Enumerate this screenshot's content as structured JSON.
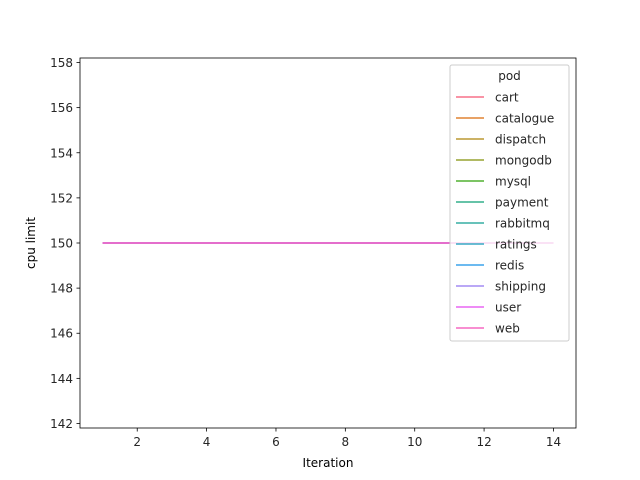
{
  "chart_data": {
    "type": "line",
    "xlabel": "Iteration",
    "ylabel": "cpu limit",
    "xlim": [
      0.35,
      14.65
    ],
    "ylim": [
      141.8,
      158.2
    ],
    "xticks": [
      2,
      4,
      6,
      8,
      10,
      12,
      14
    ],
    "yticks": [
      142,
      144,
      146,
      148,
      150,
      152,
      154,
      156,
      158
    ],
    "x": [
      1,
      2,
      3,
      4,
      5,
      6,
      7,
      8,
      9,
      10,
      11,
      12,
      13,
      14
    ],
    "legend": {
      "title": "pod",
      "placement": "upper right"
    },
    "series": [
      {
        "name": "cart",
        "color": "#f77189",
        "values": [
          150,
          150,
          150,
          150,
          150,
          150,
          150,
          150,
          150,
          150,
          150,
          150,
          150,
          150
        ]
      },
      {
        "name": "catalogue",
        "color": "#e18432",
        "values": [
          150,
          150,
          150,
          150,
          150,
          150,
          150,
          150,
          150,
          150,
          150,
          150,
          150,
          150
        ]
      },
      {
        "name": "dispatch",
        "color": "#bb9832",
        "values": [
          150,
          150,
          150,
          150,
          150,
          150,
          150,
          150,
          150,
          150,
          150,
          150,
          150,
          150
        ]
      },
      {
        "name": "mongodb",
        "color": "#97a431",
        "values": [
          150,
          150,
          150,
          150,
          150,
          150,
          150,
          150,
          150,
          150,
          150,
          150,
          150,
          150
        ]
      },
      {
        "name": "mysql",
        "color": "#50b131",
        "values": [
          150,
          150,
          150,
          150,
          150,
          150,
          150,
          150,
          150,
          150,
          150,
          150,
          150,
          150
        ]
      },
      {
        "name": "payment",
        "color": "#34af8b",
        "values": [
          150,
          150,
          150,
          150,
          150,
          150,
          150,
          150,
          150,
          150,
          150,
          150,
          150,
          150
        ]
      },
      {
        "name": "rabbitmq",
        "color": "#36ada4",
        "values": [
          150,
          150,
          150,
          150,
          150,
          150,
          150,
          150,
          150,
          150,
          150,
          150,
          150,
          150
        ]
      },
      {
        "name": "ratings",
        "color": "#38a9c5",
        "values": [
          150,
          150,
          150,
          150,
          150,
          150,
          150,
          150,
          150,
          150,
          150,
          150,
          150,
          150
        ]
      },
      {
        "name": "redis",
        "color": "#3ba3ec",
        "values": [
          150,
          150,
          150,
          150,
          150,
          150,
          150,
          150,
          150,
          150,
          150,
          150,
          150,
          150
        ]
      },
      {
        "name": "shipping",
        "color": "#a38cf4",
        "values": [
          150,
          150,
          150,
          150,
          150,
          150,
          150,
          150,
          150,
          150,
          150,
          150,
          150,
          150
        ]
      },
      {
        "name": "user",
        "color": "#e866f4",
        "values": [
          150,
          150,
          150,
          150,
          150,
          150,
          150,
          150,
          150,
          150,
          150,
          150,
          150,
          150
        ]
      },
      {
        "name": "web",
        "color": "#f668c2",
        "values": [
          150,
          150,
          150,
          150,
          150,
          150,
          150,
          150,
          150,
          150,
          150,
          150,
          150,
          150
        ]
      }
    ]
  }
}
